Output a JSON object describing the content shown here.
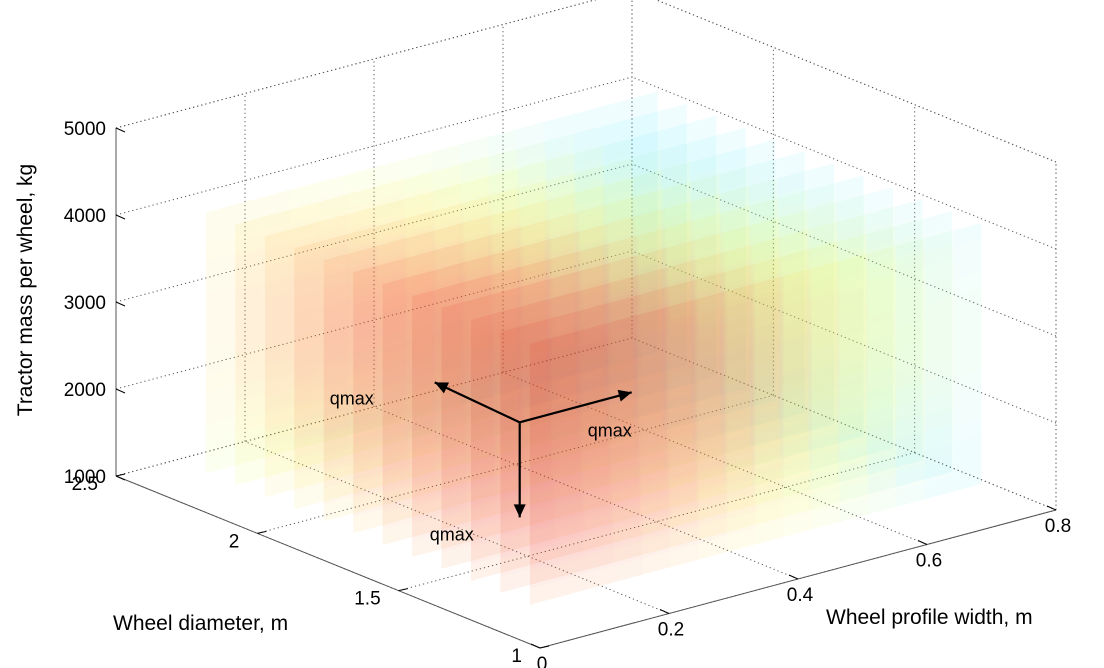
{
  "chart_data": {
    "type": "volumetric-scatter-3d",
    "axes": {
      "x": {
        "label": "Wheel profile width, m",
        "ticks": [
          0,
          0.2,
          0.4,
          0.6,
          0.8
        ],
        "tick_labels": [
          "0",
          "0.2",
          "0.4",
          "0.6",
          "0.8"
        ],
        "range": [
          0,
          0.8
        ]
      },
      "y": {
        "label": "Wheel diameter, m",
        "ticks": [
          1,
          1.5,
          2,
          2.5
        ],
        "tick_labels": [
          "1",
          "1.5",
          "2",
          "2.5"
        ],
        "range": [
          1,
          2.5
        ]
      },
      "z": {
        "label": "Tractor mass per wheel, kg",
        "ticks": [
          1000,
          2000,
          3000,
          4000,
          5000
        ],
        "tick_labels": [
          "1000",
          "2000",
          "3000",
          "4000",
          "5000"
        ],
        "range": [
          1000,
          5000
        ]
      }
    },
    "data_volume": {
      "x_range": [
        0.05,
        0.75
      ],
      "y_range": [
        1.15,
        2.4
      ],
      "z_range": [
        1200,
        4200
      ],
      "grid_steps": [
        16,
        12,
        16
      ]
    },
    "colormap": [
      "#55e8ff",
      "#e8ff3a",
      "#ffd22a",
      "#f01515",
      "#c80a0a"
    ],
    "maximum_location": {
      "x": 0.1,
      "y": 1.3,
      "z": 3000
    },
    "annotations": [
      {
        "text": "qmax",
        "direction": "diameter"
      },
      {
        "text": "qmax",
        "direction": "width"
      },
      {
        "text": "qmax",
        "direction": "mass"
      }
    ],
    "grid": true,
    "legend": "none"
  }
}
